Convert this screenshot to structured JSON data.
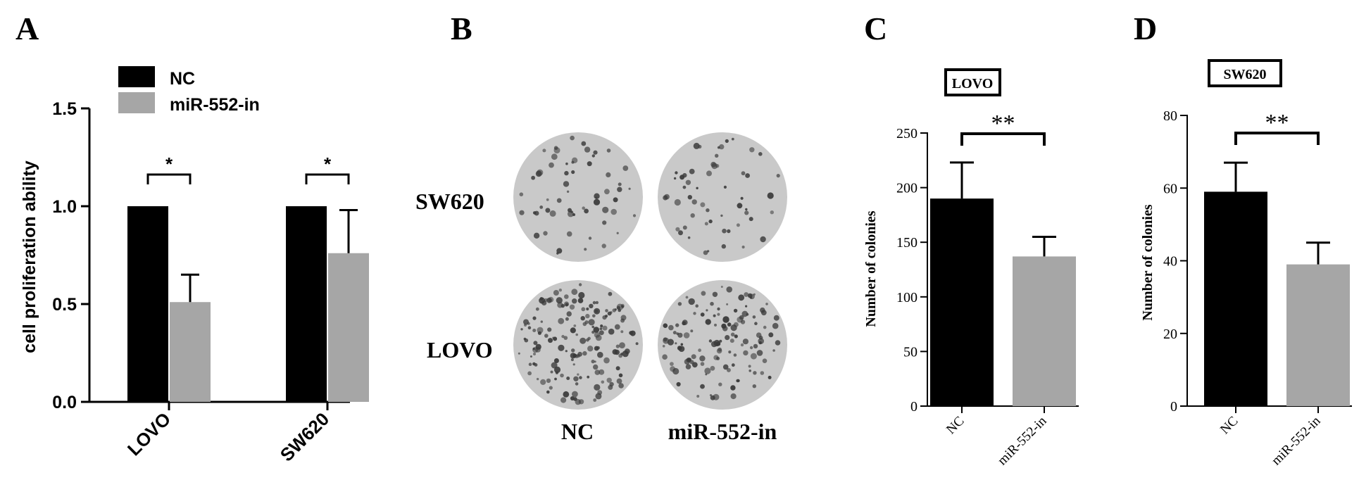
{
  "colors": {
    "nc": "#000000",
    "inhib": "#a6a6a6",
    "dish_bg": "#c9c9c9",
    "dish_dot": "#3a3a3a"
  },
  "panels": {
    "A": {
      "letter": "A",
      "legend": [
        "NC",
        "miR-552-in"
      ],
      "ylabel": "cell proliferation ability",
      "yticks": [
        "0.0",
        "0.5",
        "1.0",
        "1.5"
      ],
      "xcats": [
        "LOVO",
        "SW620"
      ],
      "sig": [
        "*",
        "*"
      ]
    },
    "B": {
      "letter": "B",
      "rows": [
        "SW620",
        "LOVO"
      ],
      "cols": [
        "NC",
        "miR-552-in"
      ]
    },
    "C": {
      "letter": "C",
      "title": "LOVO",
      "ylabel": "Number of colonies",
      "yticks": [
        "0",
        "50",
        "100",
        "150",
        "200",
        "250"
      ],
      "xcats": [
        "NC",
        "miR-552-in"
      ],
      "sig": "**"
    },
    "D": {
      "letter": "D",
      "title": "SW620",
      "ylabel": "Number of colonies",
      "yticks": [
        "0",
        "20",
        "40",
        "60",
        "80"
      ],
      "xcats": [
        "NC",
        "miR-552-in"
      ],
      "sig": "**"
    }
  },
  "chart_data": [
    {
      "type": "bar",
      "panel": "A",
      "categories": [
        "LOVO",
        "SW620"
      ],
      "series": [
        {
          "name": "NC",
          "values": [
            1.0,
            1.0
          ],
          "errors": [
            0,
            0
          ]
        },
        {
          "name": "miR-552-in",
          "values": [
            0.51,
            0.76
          ],
          "errors": [
            0.14,
            0.22
          ]
        }
      ],
      "ylabel": "cell proliferation ability",
      "ylim": [
        0,
        1.5
      ],
      "legend": "top-left"
    },
    {
      "type": "bar",
      "panel": "C",
      "title": "LOVO",
      "categories": [
        "NC",
        "miR-552-in"
      ],
      "values": [
        190,
        137
      ],
      "errors": [
        33,
        18
      ],
      "ylabel": "Number of colonies",
      "ylim": [
        0,
        250
      ]
    },
    {
      "type": "bar",
      "panel": "D",
      "title": "SW620",
      "categories": [
        "NC",
        "miR-552-in"
      ],
      "values": [
        59,
        39
      ],
      "errors": [
        8,
        6
      ],
      "ylabel": "Number of colonies",
      "ylim": [
        0,
        80
      ]
    }
  ]
}
